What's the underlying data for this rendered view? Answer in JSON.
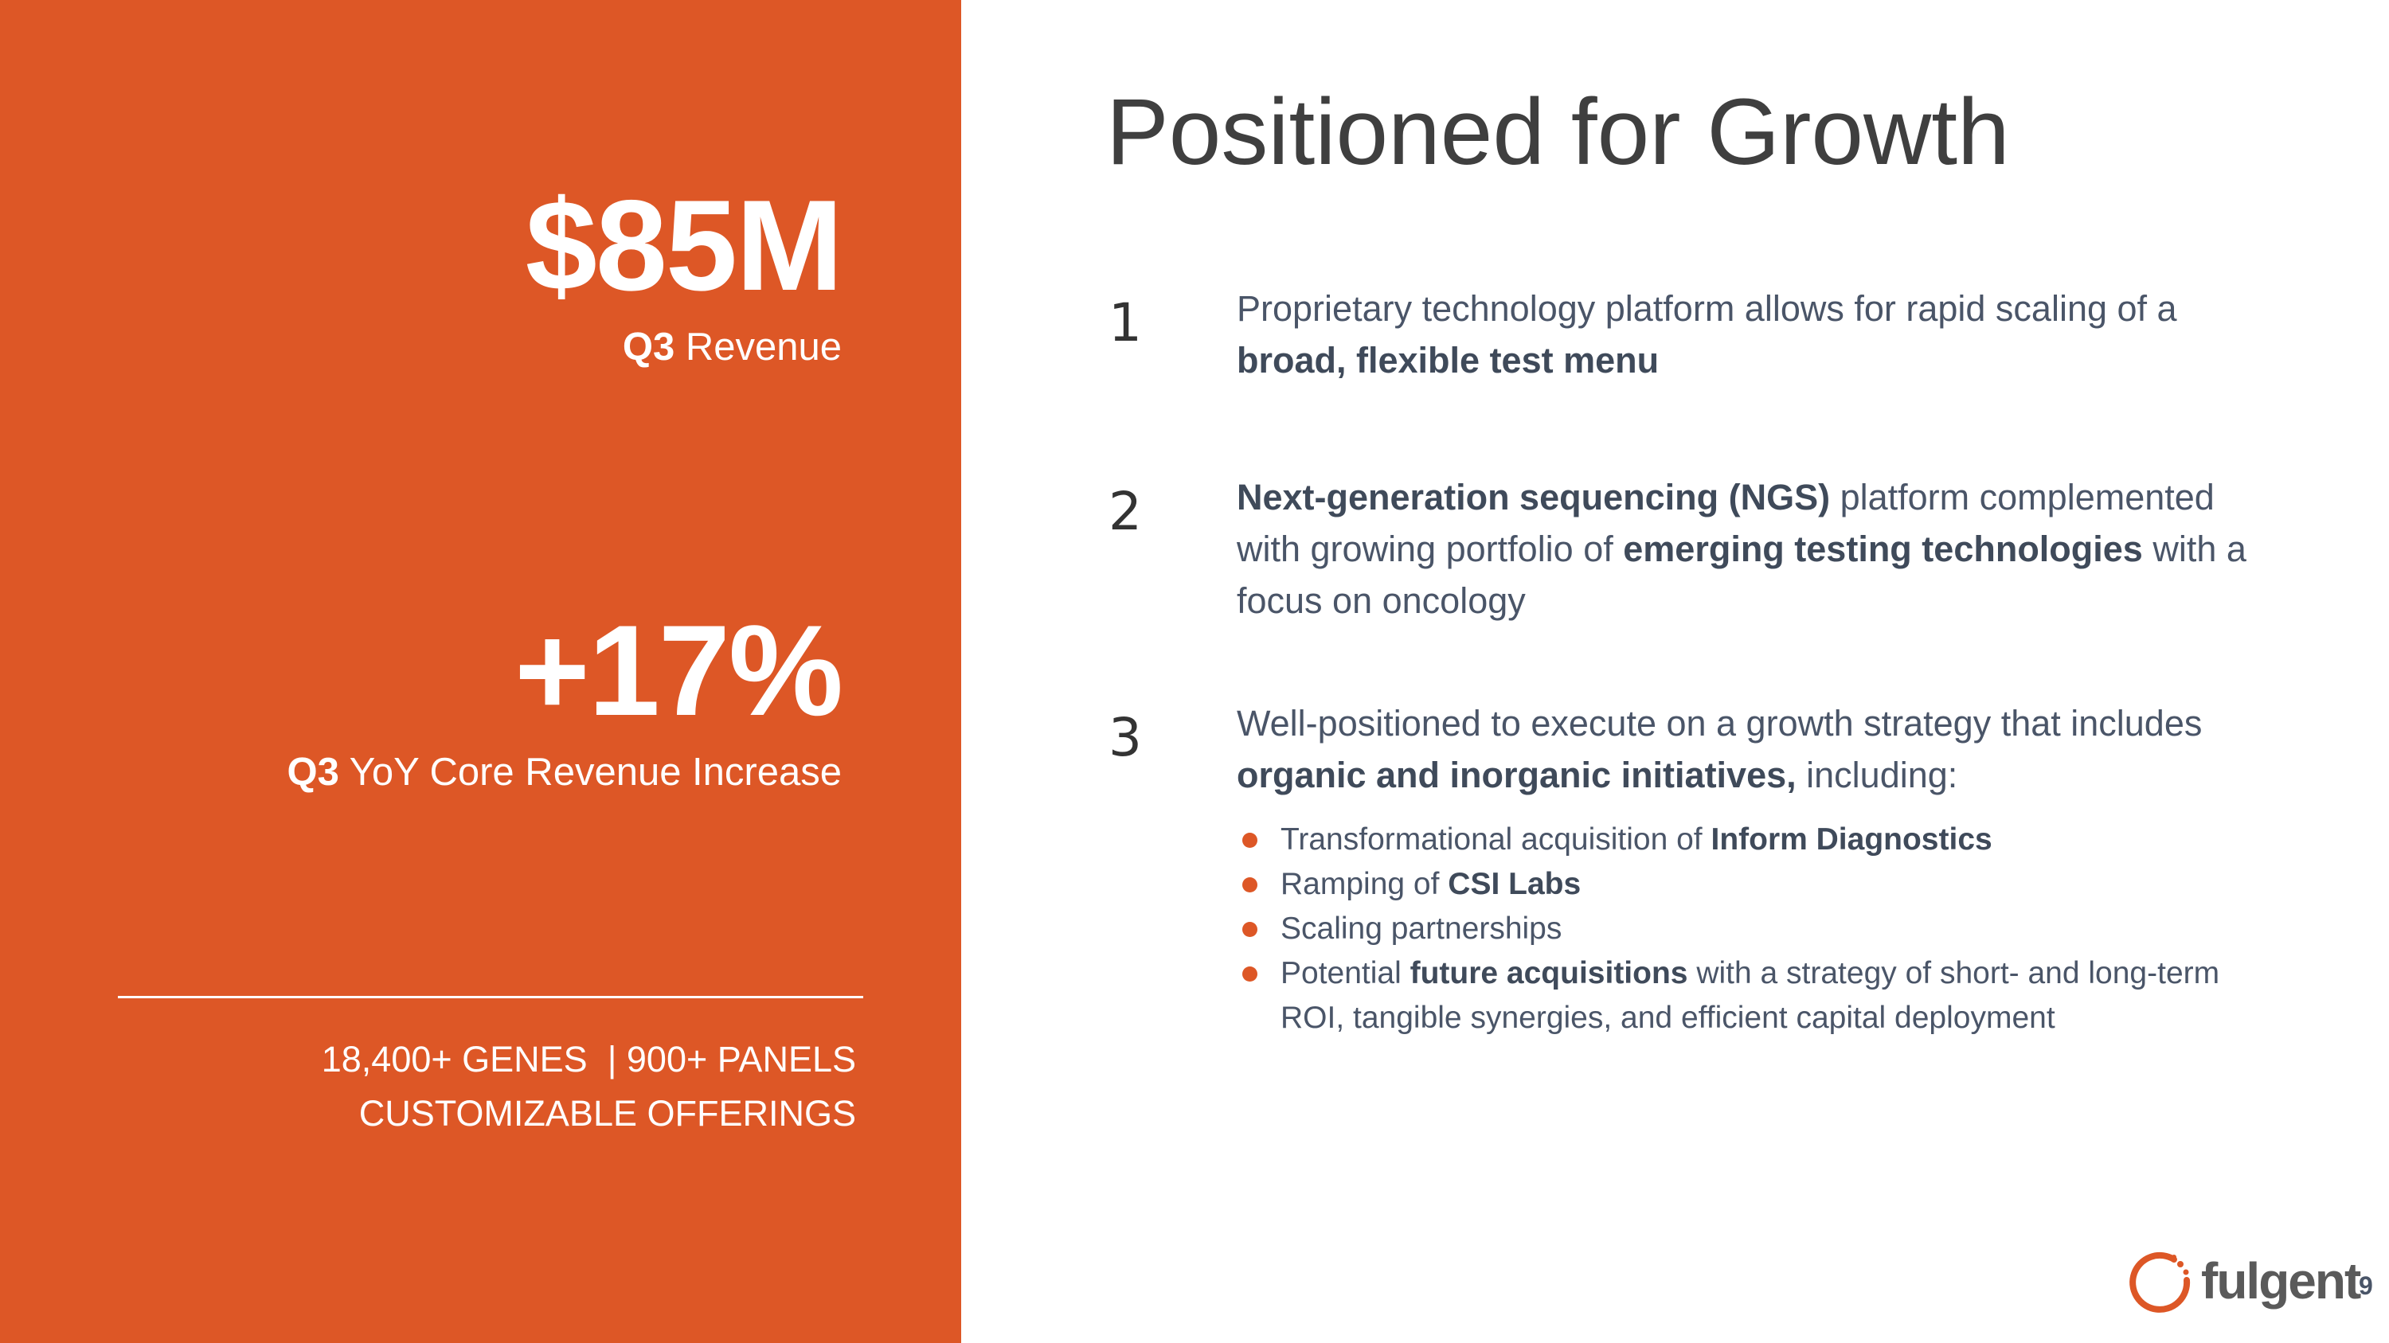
{
  "left": {
    "stat1": {
      "value": "$85M",
      "label_bold": "Q3",
      "label_rest": " Revenue"
    },
    "stat2": {
      "value": "+17%",
      "label_bold": "Q3",
      "label_rest": " YoY Core Revenue Increase"
    },
    "offerings_line1": "18,400+ GENES  | 900+ PANELS",
    "offerings_line2": "CUSTOMIZABLE OFFERINGS"
  },
  "title": "Positioned for Growth",
  "items": [
    {
      "number": "1",
      "parts": [
        {
          "text": "Proprietary technology platform allows for rapid scaling of a ",
          "bold": false
        },
        {
          "text": "broad, flexible test menu",
          "bold": true
        }
      ]
    },
    {
      "number": "2",
      "parts": [
        {
          "text": "Next-generation sequencing (NGS)",
          "bold": true
        },
        {
          "text": " platform complemented with growing portfolio of ",
          "bold": false
        },
        {
          "text": "emerging testing technologies",
          "bold": true
        },
        {
          "text": " with a focus on oncology",
          "bold": false
        }
      ]
    },
    {
      "number": "3",
      "parts": [
        {
          "text": "Well-positioned to execute on a growth strategy that includes ",
          "bold": false
        },
        {
          "text": "organic and inorganic initiatives,",
          "bold": true
        },
        {
          "text": " including:",
          "bold": false
        }
      ]
    }
  ],
  "sub_items": [
    {
      "parts": [
        {
          "text": "Transformational acquisition of ",
          "bold": false
        },
        {
          "text": "Inform Diagnostics",
          "bold": true
        }
      ]
    },
    {
      "parts": [
        {
          "text": "Ramping of ",
          "bold": false
        },
        {
          "text": "CSI Labs",
          "bold": true
        }
      ]
    },
    {
      "parts": [
        {
          "text": "Scaling partnerships",
          "bold": false
        }
      ]
    },
    {
      "parts": [
        {
          "text": "Potential ",
          "bold": false
        },
        {
          "text": "future acquisitions",
          "bold": true
        },
        {
          "text": " with a strategy of short- and long-term ROI, tangible synergies, and efficient capital deployment",
          "bold": false
        }
      ]
    }
  ],
  "logo": {
    "name": "fulgent",
    "color": "#DD5726"
  },
  "page_number": "9",
  "colors": {
    "accent": "#DD5726",
    "title": "#3f3f3f",
    "body": "#4a5568"
  }
}
